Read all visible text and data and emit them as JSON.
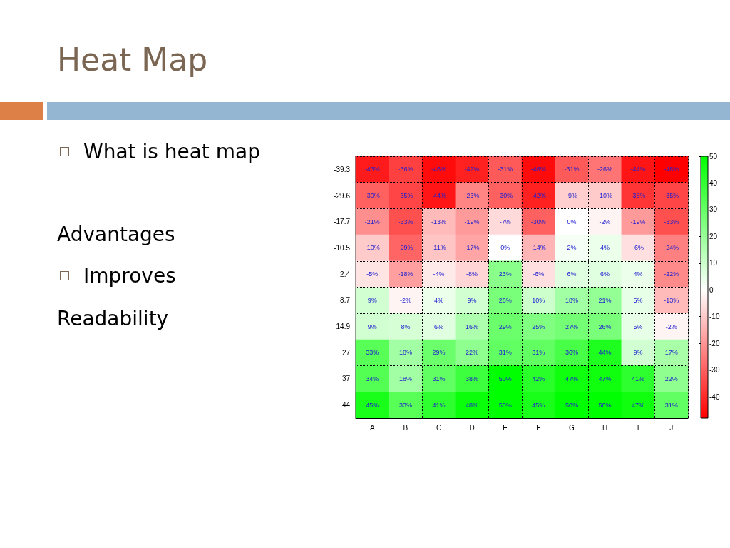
{
  "chart_data": {
    "type": "heatmap",
    "title": "Heat Map",
    "annotations": [
      "What is heat map",
      "Advantages",
      "Improves",
      "Readability"
    ],
    "categories": [
      "A",
      "B",
      "C",
      "D",
      "E",
      "F",
      "G",
      "H",
      "I",
      "J"
    ],
    "y_categories": [
      "-39.3",
      "-29.6",
      "-17.7",
      "-10.5",
      "-2.4",
      "8.7",
      "14.9",
      "27",
      "37",
      "44"
    ],
    "cells": [
      [
        -43,
        -36,
        -46,
        -42,
        -31,
        -46,
        -31,
        -26,
        -44,
        -48
      ],
      [
        -30,
        -35,
        -44,
        -23,
        -30,
        -42,
        -9,
        -10,
        -38,
        -35
      ],
      [
        -21,
        -33,
        -13,
        -19,
        -7,
        -30,
        0,
        -2,
        -19,
        -33
      ],
      [
        -10,
        -29,
        -11,
        -17,
        0,
        -14,
        2,
        4,
        -6,
        -24
      ],
      [
        -5,
        -18,
        -4,
        -8,
        23,
        -6,
        6,
        6,
        4,
        -22
      ],
      [
        9,
        -2,
        4,
        9,
        26,
        10,
        18,
        21,
        5,
        -13
      ],
      [
        9,
        8,
        6,
        16,
        29,
        25,
        27,
        26,
        5,
        -2
      ],
      [
        33,
        18,
        29,
        22,
        31,
        31,
        36,
        44,
        9,
        17
      ],
      [
        34,
        18,
        31,
        38,
        50,
        42,
        47,
        47,
        41,
        22
      ],
      [
        45,
        33,
        41,
        48,
        50,
        45,
        50,
        50,
        47,
        31
      ]
    ],
    "cell_labels": [
      [
        "-43%",
        "-36%",
        "-46%",
        "-42%",
        "-31%",
        "-46%",
        "-31%",
        "-26%",
        "-44%",
        "-48%"
      ],
      [
        "-30%",
        "-35%",
        "-44%",
        "-23%",
        "-30%",
        "-42%",
        "-9%",
        "-10%",
        "-38%",
        "-35%"
      ],
      [
        "-21%",
        "-33%",
        "-13%",
        "-19%",
        "-7%",
        "-30%",
        "0%",
        "-2%",
        "-19%",
        "-33%"
      ],
      [
        "-10%",
        "-29%",
        "-11%",
        "-17%",
        "0%",
        "-14%",
        "2%",
        "4%",
        "-6%",
        "-24%"
      ],
      [
        "-5%",
        "-18%",
        "-4%",
        "-8%",
        "23%",
        "-6%",
        "6%",
        "6%",
        "4%",
        "-22%"
      ],
      [
        "9%",
        "-2%",
        "4%",
        "9%",
        "26%",
        "10%",
        "18%",
        "21%",
        "5%",
        "-13%"
      ],
      [
        "9%",
        "8%",
        "6%",
        "16%",
        "29%",
        "25%",
        "27%",
        "26%",
        "5%",
        "-2%"
      ],
      [
        "33%",
        "18%",
        "29%",
        "22%",
        "31%",
        "31%",
        "36%",
        "44%",
        "9%",
        "17%"
      ],
      [
        "34%",
        "18%",
        "31%",
        "38%",
        "50%",
        "42%",
        "47%",
        "47%",
        "41%",
        "22%"
      ],
      [
        "45%",
        "33%",
        "41%",
        "48%",
        "50%",
        "45%",
        "50%",
        "50%",
        "47%",
        "31%"
      ]
    ],
    "clim": [
      -48,
      50
    ],
    "cticks": [
      -40,
      -30,
      -20,
      -10,
      0,
      10,
      20,
      30,
      40,
      50
    ],
    "grid": true
  }
}
